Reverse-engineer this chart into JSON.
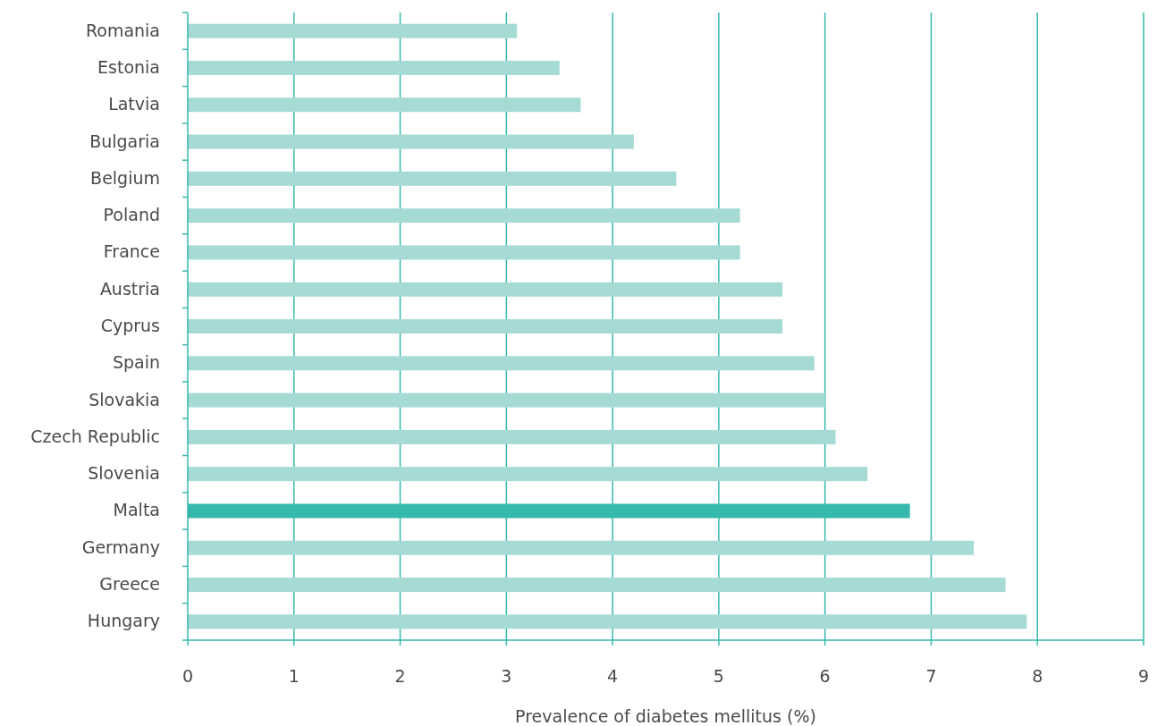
{
  "chart_data": {
    "type": "bar",
    "orientation": "horizontal",
    "xlabel": "Prevalence of diabetes mellitus (%)",
    "categories": [
      "Romania",
      "Estonia",
      "Latvia",
      "Bulgaria",
      "Belgium",
      "Poland",
      "France",
      "Austria",
      "Cyprus",
      "Spain",
      "Slovakia",
      "Czech Republic",
      "Slovenia",
      "Malta",
      "Germany",
      "Greece",
      "Hungary"
    ],
    "values": [
      3.1,
      3.5,
      3.7,
      4.2,
      4.6,
      5.2,
      5.2,
      5.6,
      5.6,
      5.9,
      6.0,
      6.1,
      6.4,
      6.8,
      7.4,
      7.7,
      7.9
    ],
    "colors": [
      "#a6dbd5",
      "#a6dbd5",
      "#a6dbd5",
      "#a6dbd5",
      "#a6dbd5",
      "#a6dbd5",
      "#a6dbd5",
      "#a6dbd5",
      "#a6dbd5",
      "#a6dbd5",
      "#a6dbd5",
      "#a6dbd5",
      "#a6dbd5",
      "#35b9ad",
      "#a6dbd5",
      "#a6dbd5",
      "#a6dbd5"
    ],
    "xlim": [
      0,
      9
    ],
    "xticks": [
      0,
      1,
      2,
      3,
      4,
      5,
      6,
      7,
      8,
      9
    ],
    "grid": "x"
  }
}
